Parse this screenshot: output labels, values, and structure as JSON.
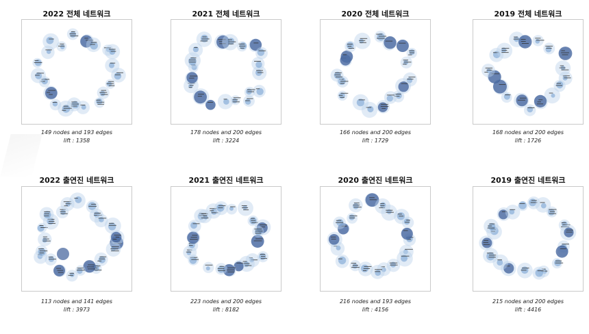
{
  "colors": {
    "node_light": "#bcd3ec",
    "node_mid": "#7aa4d4",
    "node_dark": "#3e5f9a",
    "label": "#333333",
    "frame": "#c9c9c9"
  },
  "rows": [
    {
      "panels": [
        {
          "title": "2022 전체 네트워크",
          "caption": "149 nodes and 193 edges",
          "lift": "lift : 1358",
          "nodes": 149,
          "edges": 193
        },
        {
          "title": "2021 전체 네트워크",
          "caption": "178 nodes and 200 edges",
          "lift": "lift : 3224",
          "nodes": 178,
          "edges": 200
        },
        {
          "title": "2020 전체 네트워크",
          "caption": "166 nodes and 200 edges",
          "lift": "lift : 1729",
          "nodes": 166,
          "edges": 200
        },
        {
          "title": "2019 전체 네트워크",
          "caption": "168 nodes and 200 edges",
          "lift": "lift : 1726",
          "nodes": 168,
          "edges": 200
        }
      ]
    },
    {
      "panels": [
        {
          "title": "2022 출연진 네트워크",
          "caption": "113 nodes and 141 edges",
          "lift": "lift : 3973",
          "nodes": 113,
          "edges": 141
        },
        {
          "title": "2021 출연진 네트워크",
          "caption": "223 nodes and 200 edges",
          "lift": "lift : 8182",
          "nodes": 223,
          "edges": 200
        },
        {
          "title": "2020 출연진 네트워크",
          "caption": "216 nodes and 193 edges",
          "lift": "lift : 4156",
          "nodes": 216,
          "edges": 193
        },
        {
          "title": "2019 출연진 네트워크",
          "caption": "215 nodes and 200 edges",
          "lift": "lift : 4416",
          "nodes": 215,
          "edges": 200
        }
      ]
    }
  ]
}
